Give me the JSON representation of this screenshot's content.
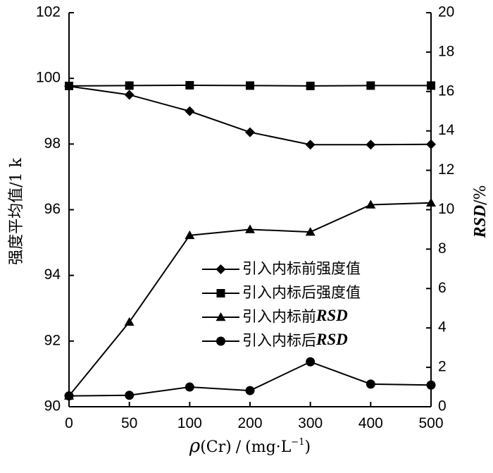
{
  "chart_data": {
    "type": "line",
    "x": [
      0,
      50,
      100,
      200,
      300,
      400,
      500
    ],
    "xticks": [
      "0",
      "50",
      "100",
      "200",
      "300",
      "400",
      "500"
    ],
    "xlabel": {
      "rho": "ρ",
      "paren": "(Cr)",
      "sep": "/",
      "unit_open": "(mg",
      "unit_dot": "·",
      "unit_L": "L",
      "unit_sup": "−1",
      "unit_close": ")"
    },
    "ylabel_left": "强度平均值/1 k",
    "ylabel_right": {
      "main": "RSD",
      "unit": "/%"
    },
    "ylim_left": [
      90,
      102
    ],
    "yticks_left": [
      "90",
      "92",
      "94",
      "96",
      "98",
      "100",
      "102"
    ],
    "ylim_right": [
      0,
      20
    ],
    "yticks_right": [
      "0",
      "2",
      "4",
      "6",
      "8",
      "10",
      "12",
      "14",
      "16",
      "18",
      "20"
    ],
    "legend_position": "center-right",
    "series": [
      {
        "name": "引入内标前强度值",
        "name_em": "",
        "marker": "diamond",
        "axis": "left",
        "values": [
          99.76,
          99.5,
          99.0,
          98.36,
          97.98,
          97.98,
          97.99
        ]
      },
      {
        "name": "引入内标后强度值",
        "name_em": "",
        "marker": "square",
        "axis": "left",
        "values": [
          99.77,
          99.78,
          99.79,
          99.78,
          99.77,
          99.78,
          99.78
        ]
      },
      {
        "name": "引入内标前",
        "name_em": "RSD",
        "marker": "triangle",
        "axis": "right",
        "values": [
          0.55,
          4.3,
          8.7,
          9.0,
          8.87,
          10.25,
          10.35
        ]
      },
      {
        "name": "引入内标后",
        "name_em": "RSD",
        "marker": "circle",
        "axis": "right",
        "values": [
          0.55,
          0.58,
          1.0,
          0.82,
          2.28,
          1.15,
          1.1
        ]
      }
    ]
  }
}
